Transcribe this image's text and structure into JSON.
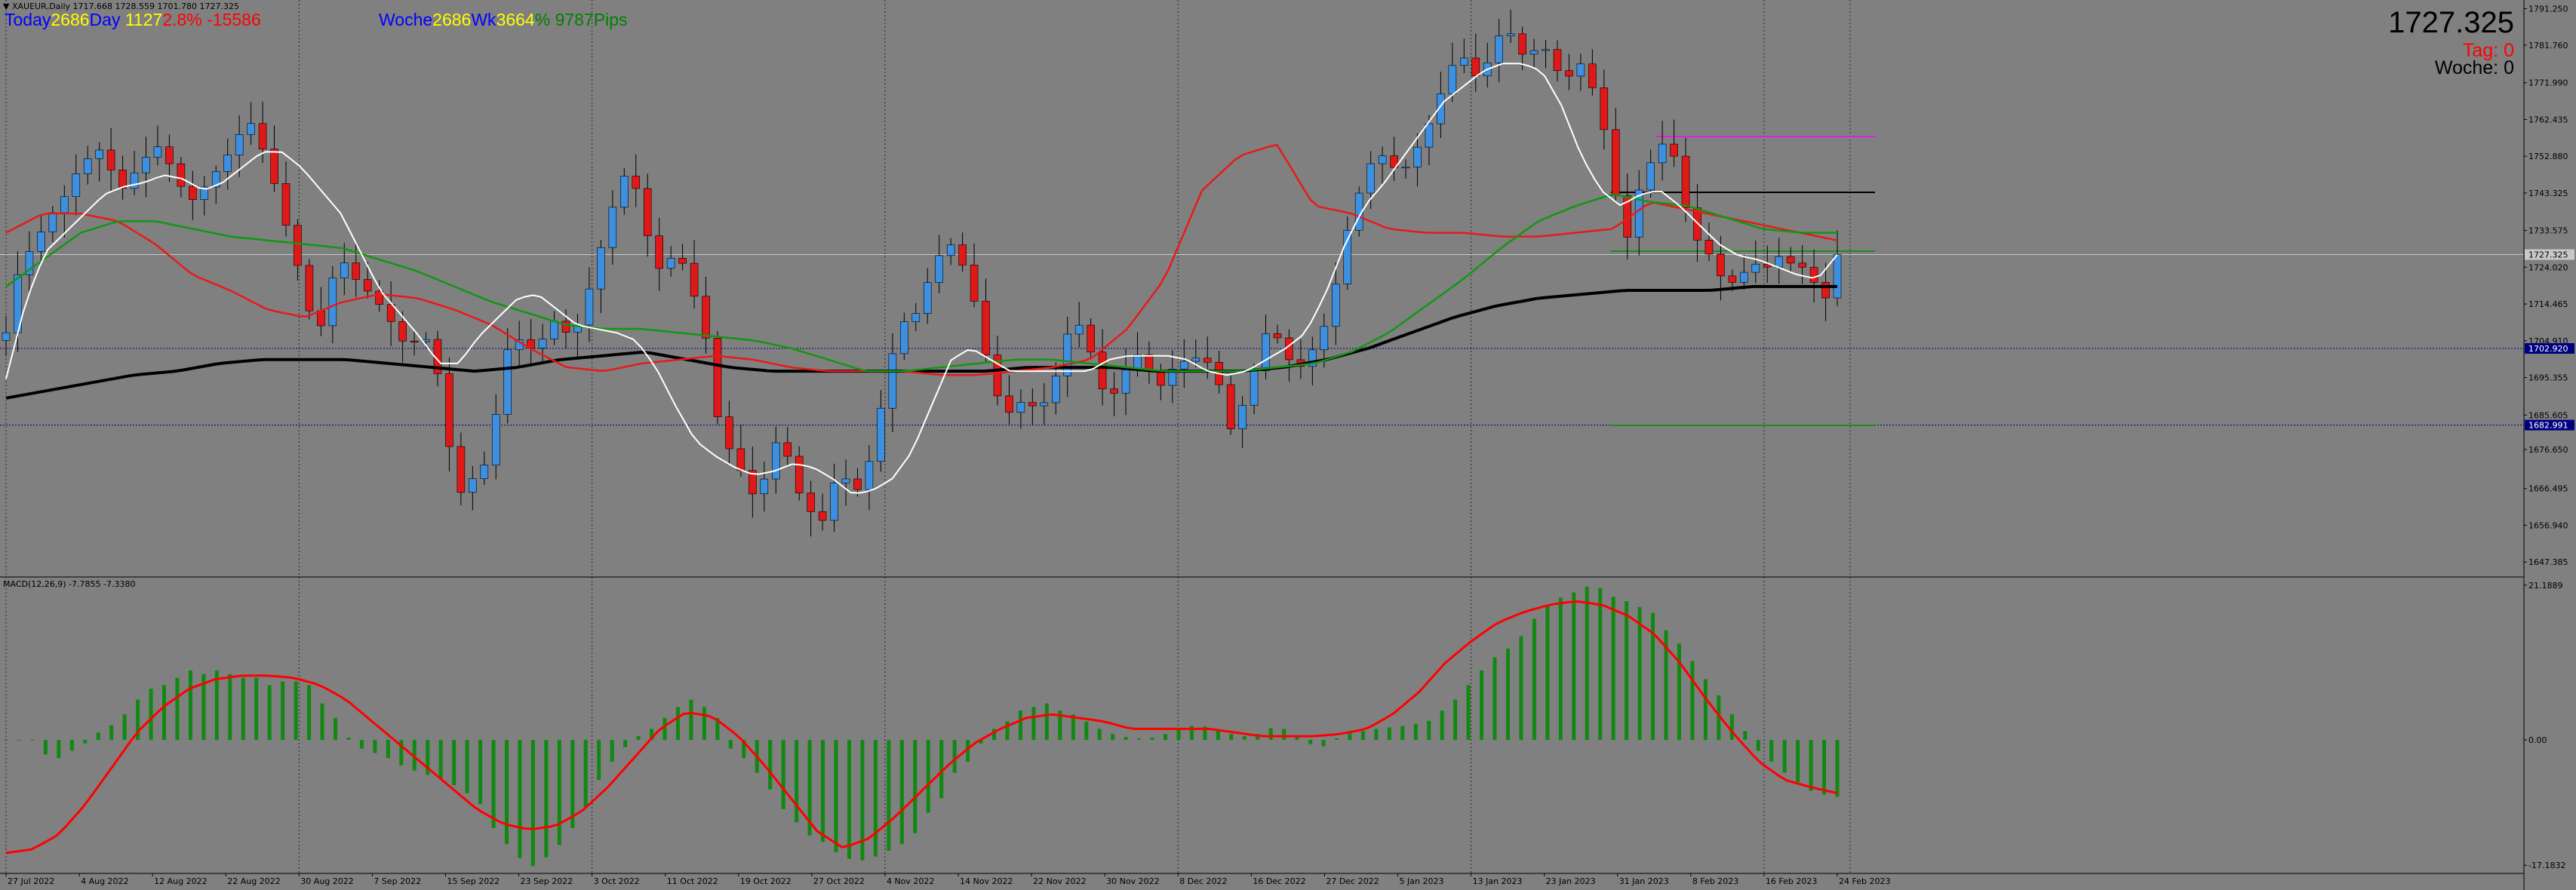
{
  "header": {
    "symbol_line": "▼ XAUEUR,Daily  1717.668 1728.559 1701.780 1727.325",
    "macd_label": "MACD(12,26,9) -7.7855 -7.3380"
  },
  "overlay": {
    "today_label": "Today",
    "today_value": "2686",
    "day_label": "Day",
    "day_value": "1127",
    "today_pct": "2.8%",
    "today_pips": "-15586",
    "week_label": "Woche",
    "week_value": "2686",
    "wk_label": "Wk",
    "wk_value": "3664",
    "wk_pct": "%",
    "wk_pips": "9787Pips"
  },
  "price_info": {
    "price": "1727.325",
    "tag_label": "Tag:",
    "tag_value": "0",
    "woche_label": "Woche:",
    "woche_value": "0"
  },
  "colors": {
    "background": "#808080",
    "bull_candle": "#3d8fe0",
    "bear_candle": "#e01818",
    "ema_short": "#ffffff",
    "ema_medium": "#139613",
    "ema_long": "#e81a1a",
    "sma_long": "#000000",
    "macd_histogram": "#118811",
    "macd_signal": "#ff0000",
    "level_magenta": "#e01fe0",
    "level_current": "#c8c8c8",
    "level_navy": "#000080"
  },
  "chart_data": [
    {
      "type": "candlestick",
      "symbol": "XAUEUR",
      "timeframe": "Daily",
      "current_price": 1727.325,
      "ylim": [
        1643.5,
        1793.5
      ],
      "y_ticks": [
        "1791.250",
        "1781.760",
        "1771.990",
        "1762.435",
        "1752.880",
        "1743.325",
        "1733.575",
        "1724.020",
        "1714.465",
        "1704.910",
        "1695.355",
        "1685.605",
        "1676.650",
        "1666.495",
        "1656.940",
        "1647.385"
      ],
      "highlighted_levels": [
        "1702.920",
        "1682.991"
      ],
      "x_ticks": [
        "27 Jul 2022",
        "4 Aug 2022",
        "12 Aug 2022",
        "22 Aug 2022",
        "30 Aug 2022",
        "7 Sep 2022",
        "15 Sep 2022",
        "23 Sep 2022",
        "3 Oct 2022",
        "11 Oct 2022",
        "19 Oct 2022",
        "27 Oct 2022",
        "4 Nov 2022",
        "14 Nov 2022",
        "22 Nov 2022",
        "30 Nov 2022",
        "8 Dec 2022",
        "16 Dec 2022",
        "27 Dec 2022",
        "5 Jan 2023",
        "13 Jan 2023",
        "23 Jan 2023",
        "31 Jan 2023",
        "8 Feb 2023",
        "16 Feb 2023",
        "24 Feb 2023"
      ],
      "close_path": [
        1707,
        1722,
        1728,
        1733,
        1738,
        1742,
        1748,
        1752,
        1755,
        1750,
        1744,
        1748,
        1752,
        1756,
        1752,
        1746,
        1741,
        1744,
        1748,
        1752,
        1757,
        1763,
        1757,
        1749,
        1738,
        1728,
        1717,
        1704,
        1718,
        1727,
        1722,
        1719,
        1716,
        1712,
        1707,
        1702,
        1708,
        1702,
        1690,
        1664,
        1667,
        1671,
        1674,
        1696,
        1708,
        1703,
        1703,
        1707,
        1712,
        1704,
        1712,
        1722,
        1733,
        1743,
        1750,
        1742,
        1728,
        1722,
        1728,
        1724,
        1714,
        1703,
        1680,
        1676,
        1670,
        1664,
        1670,
        1680,
        1674,
        1664,
        1660,
        1658,
        1669,
        1669,
        1666,
        1674,
        1688,
        1702,
        1710,
        1712,
        1720,
        1727,
        1730,
        1725,
        1716,
        1702,
        1691,
        1686,
        1689,
        1688,
        1688,
        1694,
        1706,
        1710,
        1704,
        1693,
        1690,
        1696,
        1702,
        1699,
        1692,
        1697,
        1699,
        1701,
        1699,
        1700,
        1680,
        1686,
        1692,
        1706,
        1708,
        1702,
        1697,
        1700,
        1706,
        1712,
        1729,
        1739,
        1748,
        1754,
        1752,
        1748,
        1752,
        1758,
        1764,
        1773,
        1779,
        1778,
        1771,
        1781,
        1786,
        1784,
        1777,
        1782,
        1780,
        1773,
        1774,
        1778,
        1768,
        1757,
        1738,
        1730,
        1748,
        1752,
        1757,
        1752,
        1737,
        1730,
        1727,
        1721,
        1720,
        1723,
        1725,
        1724,
        1727,
        1725,
        1724,
        1720,
        1716,
        1727.3
      ],
      "ema_short_path": [
        1695,
        1715,
        1728,
        1733,
        1738,
        1743,
        1745,
        1746,
        1748,
        1747,
        1744,
        1746,
        1750,
        1754,
        1754,
        1750,
        1744,
        1738,
        1728,
        1718,
        1712,
        1706,
        1699,
        1699,
        1706,
        1711,
        1716,
        1717,
        1713,
        1709,
        1708,
        1707,
        1705,
        1698,
        1688,
        1679,
        1675,
        1672,
        1670,
        1671,
        1673,
        1672,
        1669,
        1665,
        1666,
        1669,
        1676,
        1688,
        1700,
        1703,
        1700,
        1697,
        1697,
        1697,
        1697,
        1697,
        1700,
        1701,
        1701,
        1701,
        1700,
        1697,
        1696,
        1697,
        1700,
        1703,
        1707,
        1717,
        1730,
        1740,
        1746,
        1753,
        1760,
        1767,
        1771,
        1775,
        1777,
        1777,
        1775,
        1766,
        1753,
        1744,
        1740,
        1743,
        1744,
        1740,
        1735,
        1730,
        1727,
        1726,
        1724,
        1722,
        1721,
        1727.3
      ],
      "ema_medium_path": [
        1719,
        1726,
        1733,
        1736,
        1736,
        1734,
        1732,
        1731,
        1730,
        1729,
        1726,
        1723,
        1719,
        1715,
        1712,
        1709,
        1708,
        1708,
        1707,
        1706,
        1705,
        1703,
        1700,
        1697,
        1697,
        1698,
        1699,
        1700,
        1700,
        1699,
        1698,
        1697,
        1697,
        1697,
        1698,
        1699,
        1702,
        1707,
        1714,
        1721,
        1729,
        1736,
        1740,
        1743,
        1741,
        1740,
        1737,
        1734,
        1733,
        1733
      ],
      "ema_long_path": [
        1733,
        1738,
        1738,
        1736,
        1730,
        1722,
        1718,
        1713,
        1711,
        1715,
        1717,
        1716,
        1713,
        1709,
        1703,
        1698,
        1697,
        1699,
        1700,
        1701,
        1700,
        1698,
        1697,
        1697,
        1697,
        1696,
        1696,
        1697,
        1698,
        1700,
        1708,
        1721,
        1744,
        1753,
        1756,
        1740,
        1738,
        1734,
        1733,
        1733,
        1732,
        1732,
        1733,
        1734,
        1741,
        1739,
        1737,
        1735,
        1733,
        1731
      ],
      "sma_long_path": [
        1690,
        1692,
        1694,
        1696,
        1697,
        1699,
        1700,
        1700,
        1700,
        1699,
        1698,
        1697,
        1698,
        1700,
        1701,
        1702,
        1700,
        1698,
        1697,
        1697,
        1697,
        1697,
        1697,
        1697,
        1698,
        1698,
        1698,
        1697,
        1697,
        1697,
        1698,
        1700,
        1703,
        1707,
        1711,
        1714,
        1716,
        1717,
        1718,
        1718,
        1718,
        1719,
        1719,
        1719
      ]
    },
    {
      "type": "macd",
      "label": "MACD(12,26,9)",
      "macd_value": -7.7855,
      "signal_value": -7.338,
      "ylim": [
        -18.3,
        22.0
      ],
      "y_ticks": [
        "21.1889",
        "0.00",
        "-17.1832"
      ],
      "histogram": [
        0,
        0,
        0,
        -2.0,
        -2.5,
        -1.5,
        -0.5,
        1.0,
        2.0,
        3.5,
        5.5,
        7.0,
        7.5,
        8.5,
        9.5,
        9.0,
        9.5,
        9.0,
        8.5,
        8.5,
        7.5,
        8.0,
        8.0,
        7.5,
        5.0,
        3.0,
        0.3,
        -1.2,
        -1.8,
        -2.5,
        -3.5,
        -4.2,
        -4.8,
        -5.3,
        -6.2,
        -7.3,
        -8.8,
        -12.1,
        -14.3,
        -16.2,
        -17.3,
        -16.1,
        -14.4,
        -12.1,
        -9.3,
        -5.5,
        -3.0,
        -1.0,
        0.5,
        1.5,
        3.0,
        4.5,
        5.5,
        4.5,
        3.0,
        -1.2,
        -2.5,
        -4.5,
        -6.8,
        -9.5,
        -11.3,
        -13.1,
        -14.0,
        -15.4,
        -16.3,
        -16.5,
        -16.0,
        -15.2,
        -14.3,
        -12.8,
        -10.0,
        -8.0,
        -4.5,
        -3.0,
        -0.5,
        1.5,
        2.5,
        4.0,
        4.5,
        5.0,
        4.0,
        3.5,
        2.5,
        1.5,
        0.8,
        0.4,
        0.2,
        0.3,
        0.8,
        1.4,
        1.9,
        1.8,
        1.3,
        0.8,
        0.5,
        0.8,
        1.6,
        1.5,
        0.5,
        -0.6,
        -0.9,
        0.2,
        0.9,
        1.2,
        1.5,
        1.7,
        1.9,
        2.2,
        2.6,
        4.0,
        5.5,
        7.5,
        9.5,
        11.3,
        12.5,
        14.2,
        16.6,
        18.5,
        19.5,
        20.2,
        21.0,
        20.8,
        19.6,
        19.0,
        18.2,
        17.4,
        15.0,
        13.2,
        10.8,
        8.3,
        6.1,
        3.5,
        1.2,
        -1.5,
        -3.0,
        -4.5,
        -5.8,
        -7.0,
        -7.5,
        -7.8
      ],
      "signal": [
        -15.5,
        -15.0,
        -13.0,
        -9.0,
        -4.0,
        1.0,
        4.5,
        7.0,
        8.3,
        8.8,
        8.8,
        8.5,
        7.5,
        5.5,
        2.5,
        -0.5,
        -3.5,
        -6.5,
        -9.5,
        -11.5,
        -12.3,
        -11.8,
        -9.8,
        -6.5,
        -2.5,
        1.5,
        3.8,
        3.2,
        0.5,
        -3.5,
        -8.0,
        -12.5,
        -14.8,
        -13.5,
        -10.5,
        -7.0,
        -3.5,
        -0.5,
        1.5,
        3.0,
        3.5,
        3.0,
        2.5,
        1.5,
        1.5,
        1.5,
        1.5,
        1.0,
        0.5,
        0.5,
        0.5,
        0.8,
        1.5,
        3.5,
        6.5,
        10.5,
        13.5,
        16.0,
        17.5,
        18.5,
        19.0,
        18.5,
        17.0,
        14.5,
        10.5,
        5.5,
        1.0,
        -3.0,
        -5.5,
        -6.5,
        -7.3
      ]
    }
  ]
}
